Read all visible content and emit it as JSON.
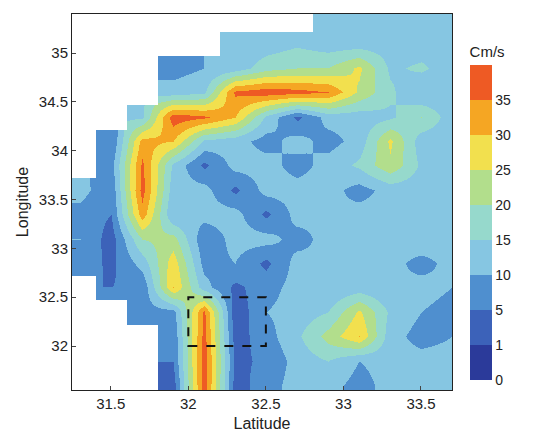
{
  "chart_data": {
    "type": "heatmap",
    "x_label": "Latitude",
    "y_label": "Longitude",
    "x": [
      31.3,
      31.5,
      31.7,
      31.9,
      32.1,
      32.3,
      32.5,
      32.7,
      32.9,
      33.1,
      33.3,
      33.5,
      33.7
    ],
    "y": [
      31.6,
      31.85,
      32.1,
      32.35,
      32.6,
      32.85,
      33.1,
      33.35,
      33.6,
      33.85,
      34.1,
      34.35,
      34.6,
      34.85,
      35.1,
      35.35
    ],
    "z": [
      [
        null,
        null,
        null,
        3,
        38,
        3,
        8,
        12,
        12,
        8,
        12,
        12,
        12
      ],
      [
        null,
        null,
        null,
        5,
        38,
        4,
        6,
        12,
        15,
        10,
        12,
        12,
        12
      ],
      [
        null,
        null,
        null,
        6,
        37,
        3,
        8,
        14,
        22,
        30,
        12,
        8,
        10
      ],
      [
        null,
        null,
        8,
        8,
        36,
        2,
        10,
        12,
        15,
        26,
        14,
        10,
        8
      ],
      [
        null,
        5,
        6,
        30,
        12,
        4,
        8,
        12,
        10,
        12,
        10,
        12,
        10
      ],
      [
        8,
        4,
        12,
        28,
        8,
        10,
        4,
        12,
        10,
        14,
        12,
        8,
        12
      ],
      [
        10,
        3,
        20,
        22,
        6,
        12,
        12,
        8,
        12,
        10,
        12,
        14,
        12
      ],
      [
        8,
        5,
        33,
        10,
        12,
        12,
        4,
        12,
        10,
        12,
        12,
        12,
        14
      ],
      [
        12,
        6,
        37,
        12,
        12,
        4,
        12,
        12,
        12,
        8,
        12,
        12,
        12
      ],
      [
        null,
        8,
        36,
        14,
        4,
        12,
        12,
        8,
        12,
        16,
        24,
        14,
        12
      ],
      [
        null,
        5,
        32,
        30,
        14,
        12,
        8,
        12,
        8,
        12,
        26,
        12,
        12
      ],
      [
        null,
        null,
        14,
        38,
        36,
        30,
        14,
        4,
        12,
        12,
        14,
        20,
        12
      ],
      [
        null,
        null,
        null,
        12,
        14,
        36,
        38,
        37,
        35,
        24,
        16,
        10,
        12
      ],
      [
        null,
        null,
        null,
        8,
        10,
        12,
        18,
        20,
        20,
        26,
        14,
        16,
        12
      ],
      [
        null,
        null,
        null,
        null,
        null,
        10,
        12,
        14,
        12,
        12,
        12,
        12,
        14
      ],
      [
        null,
        null,
        null,
        null,
        null,
        null,
        null,
        null,
        10,
        12,
        12,
        12,
        12
      ]
    ],
    "xlim": [
      31.25,
      33.7
    ],
    "ylim": [
      31.55,
      35.4
    ],
    "xticks": [
      31.5,
      32,
      32.5,
      33,
      33.5
    ],
    "yticks": [
      32,
      32.5,
      33,
      33.5,
      34,
      34.5,
      35
    ],
    "colorbar": {
      "title": "Cm/s",
      "range": [
        0,
        40
      ],
      "ticks": [
        0,
        1,
        5,
        10,
        15,
        20,
        25,
        30,
        35
      ]
    },
    "colors": [
      "#2b3a9a",
      "#3c62b9",
      "#4f8fcf",
      "#86c6e2",
      "#96d9cc",
      "#b2de8c",
      "#f2e04e",
      "#f5a623",
      "#ee5a24"
    ],
    "box": {
      "x": [
        32,
        32.5
      ],
      "y": [
        32,
        32.5
      ],
      "line_style": "dashed"
    }
  }
}
